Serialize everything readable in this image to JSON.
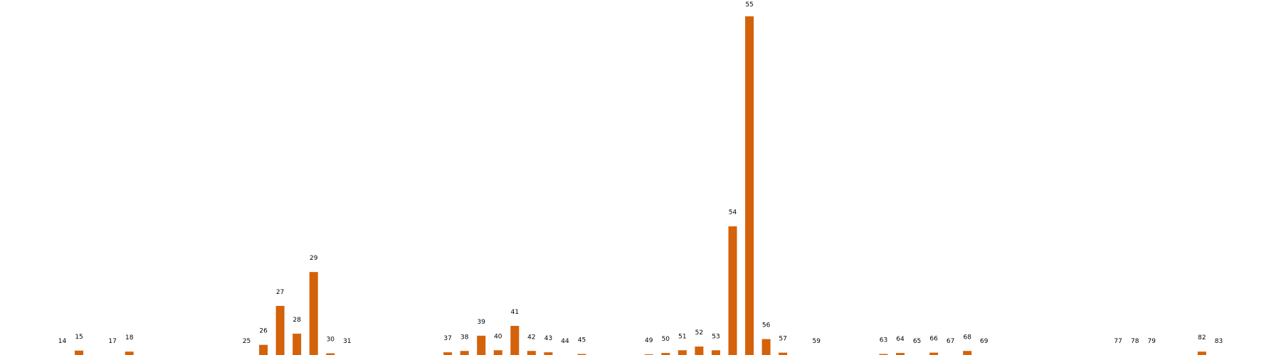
{
  "chart_data": {
    "type": "bar",
    "title": "",
    "xlabel": "",
    "ylabel": "",
    "grid": false,
    "legend": "none",
    "bar_color": "#d4620a",
    "ylim": [
      0,
      100
    ],
    "categories": [
      "14",
      "15",
      "17",
      "18",
      "25",
      "26",
      "27",
      "28",
      "29",
      "30",
      "31",
      "37",
      "38",
      "39",
      "40",
      "41",
      "42",
      "43",
      "44",
      "45",
      "49",
      "50",
      "51",
      "52",
      "53",
      "54",
      "55",
      "56",
      "57",
      "59",
      "63",
      "64",
      "65",
      "66",
      "67",
      "68",
      "69",
      "77",
      "78",
      "79",
      "82",
      "83"
    ],
    "values": [
      0,
      1.3,
      0,
      1.0,
      0,
      3.0,
      14.5,
      6.3,
      24.5,
      0.5,
      0,
      0.8,
      1.2,
      5.7,
      1.4,
      8.6,
      1.2,
      0.8,
      0,
      0.3,
      0.2,
      0.6,
      1.4,
      2.5,
      1.4,
      38.0,
      100,
      4.7,
      0.7,
      0,
      0.3,
      0.6,
      0,
      0.7,
      0,
      1.2,
      0,
      0,
      0,
      0,
      1.0,
      0
    ]
  }
}
